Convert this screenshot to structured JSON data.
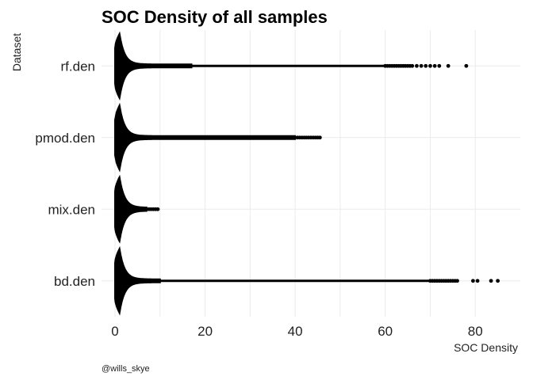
{
  "chart_data": {
    "type": "violin",
    "title": "SOC Density of all samples",
    "xlabel": "SOC Density",
    "ylabel": "Dataset",
    "caption": "@wills_skye",
    "xlim": [
      -3,
      90
    ],
    "xticks": [
      0,
      20,
      40,
      60,
      80
    ],
    "grid": true,
    "series": [
      {
        "name": "rf.den",
        "max_whisker": 17,
        "points": [
          60,
          60.5,
          61,
          61.5,
          62,
          62.5,
          63,
          63.5,
          64,
          64.5,
          65,
          65.5,
          66,
          67,
          68,
          69,
          70,
          71,
          72,
          74,
          78
        ]
      },
      {
        "name": "pmod.den",
        "max_whisker": 40,
        "points": [
          40.5,
          41,
          41.5,
          42,
          42.5,
          43,
          43.5,
          44,
          44.5,
          45,
          45.5
        ]
      },
      {
        "name": "mix.den",
        "max_whisker": 7,
        "points": [
          7.5,
          8,
          8.5,
          9,
          9.5
        ]
      },
      {
        "name": "bd.den",
        "max_whisker": 10,
        "points": [
          70,
          70.5,
          71,
          71.5,
          72,
          72.5,
          73,
          73.5,
          74,
          74.5,
          75,
          75.5,
          76,
          79.5,
          80.5,
          83.5,
          85
        ]
      }
    ]
  }
}
